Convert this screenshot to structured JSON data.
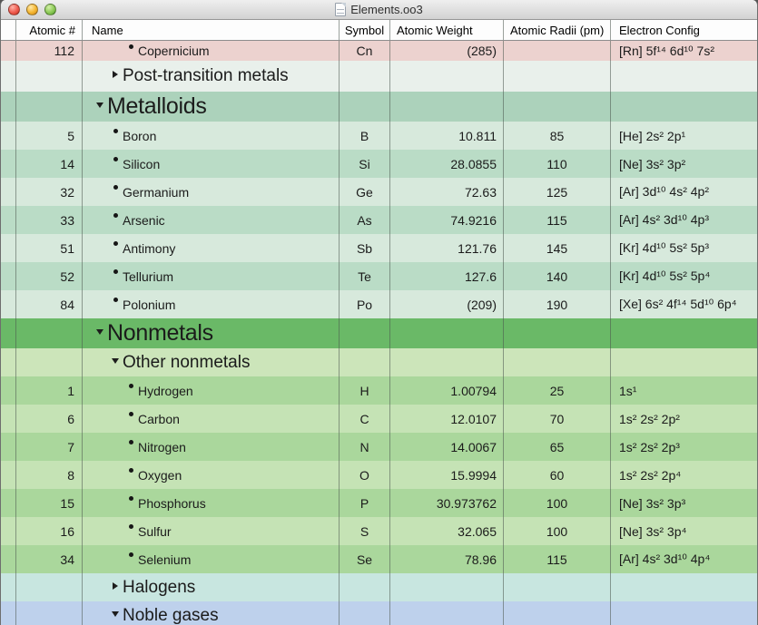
{
  "window": {
    "title": "Elements.oo3",
    "traffic_lights": {
      "close": "close",
      "minimize": "minimize",
      "zoom": "zoom"
    }
  },
  "colors": {
    "transition_metal_row": "#ecd2cf",
    "post_transition_group": "#e9f0eb",
    "metalloids_header": "#acd2bb",
    "metalloid_row_light": "#d7e9dc",
    "metalloid_row_dark": "#badcc6",
    "nonmetals_header": "#6ab967",
    "other_nonmetals_group": "#cce5ba",
    "nonmetal_row_dark": "#aad79c",
    "nonmetal_row_light": "#c5e3b5",
    "halogens_group": "#c8e6e0",
    "noble_gases_group": "#bed1ec"
  },
  "table": {
    "columns": [
      {
        "key": "num",
        "label": "Atomic #"
      },
      {
        "key": "name",
        "label": "Name"
      },
      {
        "key": "symbol",
        "label": "Symbol"
      },
      {
        "key": "weight",
        "label": "Atomic Weight"
      },
      {
        "key": "radii",
        "label": "Atomic Radii (pm)"
      },
      {
        "key": "config",
        "label": "Electron Config"
      }
    ],
    "rows": [
      {
        "kind": "element",
        "level": 3,
        "variant": "compact",
        "bg": "#ecd2cf",
        "num": "112",
        "name": "Copernicium",
        "symbol": "Cn",
        "weight": "(285)",
        "radii": "",
        "config": "[Rn] 5f¹⁴ 6d¹⁰ 7s²"
      },
      {
        "kind": "group",
        "level": 2,
        "variant": "tall",
        "disclosure": "collapsed",
        "bg": "#e9f0eb",
        "name": "Post-transition metals"
      },
      {
        "kind": "group",
        "level": 1,
        "disclosure": "expanded",
        "bg": "#acd2bb",
        "name": "Metalloids"
      },
      {
        "kind": "element",
        "level": 2,
        "bg": "#d7e9dc",
        "num": "5",
        "name": "Boron",
        "symbol": "B",
        "weight": "10.811",
        "radii": "85",
        "config": "[He] 2s² 2p¹"
      },
      {
        "kind": "element",
        "level": 2,
        "bg": "#badcc6",
        "num": "14",
        "name": "Silicon",
        "symbol": "Si",
        "weight": "28.0855",
        "radii": "110",
        "config": "[Ne] 3s² 3p²"
      },
      {
        "kind": "element",
        "level": 2,
        "bg": "#d7e9dc",
        "num": "32",
        "name": "Germanium",
        "symbol": "Ge",
        "weight": "72.63",
        "radii": "125",
        "config": "[Ar] 3d¹⁰ 4s² 4p²"
      },
      {
        "kind": "element",
        "level": 2,
        "bg": "#badcc6",
        "num": "33",
        "name": "Arsenic",
        "symbol": "As",
        "weight": "74.9216",
        "radii": "115",
        "config": "[Ar] 4s² 3d¹⁰ 4p³"
      },
      {
        "kind": "element",
        "level": 2,
        "bg": "#d7e9dc",
        "num": "51",
        "name": "Antimony",
        "symbol": "Sb",
        "weight": "121.76",
        "radii": "145",
        "config": "[Kr] 4d¹⁰ 5s² 5p³"
      },
      {
        "kind": "element",
        "level": 2,
        "bg": "#badcc6",
        "num": "52",
        "name": "Tellurium",
        "symbol": "Te",
        "weight": "127.6",
        "radii": "140",
        "config": "[Kr] 4d¹⁰ 5s² 5p⁴"
      },
      {
        "kind": "element",
        "level": 2,
        "bg": "#d7e9dc",
        "num": "84",
        "name": "Polonium",
        "symbol": "Po",
        "weight": "(209)",
        "radii": "190",
        "config": "[Xe] 6s² 4f¹⁴ 5d¹⁰ 6p⁴"
      },
      {
        "kind": "group",
        "level": 1,
        "disclosure": "expanded",
        "bg": "#6ab967",
        "name": "Nonmetals"
      },
      {
        "kind": "group",
        "level": 2,
        "disclosure": "expanded",
        "bg": "#cce5ba",
        "name": "Other nonmetals"
      },
      {
        "kind": "element",
        "level": 3,
        "bg": "#aad79c",
        "num": "1",
        "name": "Hydrogen",
        "symbol": "H",
        "weight": "1.00794",
        "radii": "25",
        "config": "1s¹"
      },
      {
        "kind": "element",
        "level": 3,
        "bg": "#c5e3b5",
        "num": "6",
        "name": "Carbon",
        "symbol": "C",
        "weight": "12.0107",
        "radii": "70",
        "config": "1s² 2s² 2p²"
      },
      {
        "kind": "element",
        "level": 3,
        "bg": "#aad79c",
        "num": "7",
        "name": "Nitrogen",
        "symbol": "N",
        "weight": "14.0067",
        "radii": "65",
        "config": "1s² 2s² 2p³"
      },
      {
        "kind": "element",
        "level": 3,
        "bg": "#c5e3b5",
        "num": "8",
        "name": "Oxygen",
        "symbol": "O",
        "weight": "15.9994",
        "radii": "60",
        "config": "1s² 2s² 2p⁴"
      },
      {
        "kind": "element",
        "level": 3,
        "bg": "#aad79c",
        "num": "15",
        "name": "Phosphorus",
        "symbol": "P",
        "weight": "30.973762",
        "radii": "100",
        "config": "[Ne] 3s² 3p³"
      },
      {
        "kind": "element",
        "level": 3,
        "bg": "#c5e3b5",
        "num": "16",
        "name": "Sulfur",
        "symbol": "S",
        "weight": "32.065",
        "radii": "100",
        "config": "[Ne] 3s² 3p⁴"
      },
      {
        "kind": "element",
        "level": 3,
        "bg": "#aad79c",
        "num": "34",
        "name": "Selenium",
        "symbol": "Se",
        "weight": "78.96",
        "radii": "115",
        "config": "[Ar] 4s² 3d¹⁰ 4p⁴"
      },
      {
        "kind": "group",
        "level": 2,
        "disclosure": "collapsed",
        "bg": "#c8e6e0",
        "name": "Halogens"
      },
      {
        "kind": "group",
        "level": 2,
        "disclosure": "expanded",
        "bg": "#bed1ec",
        "name": "Noble gases"
      }
    ]
  }
}
